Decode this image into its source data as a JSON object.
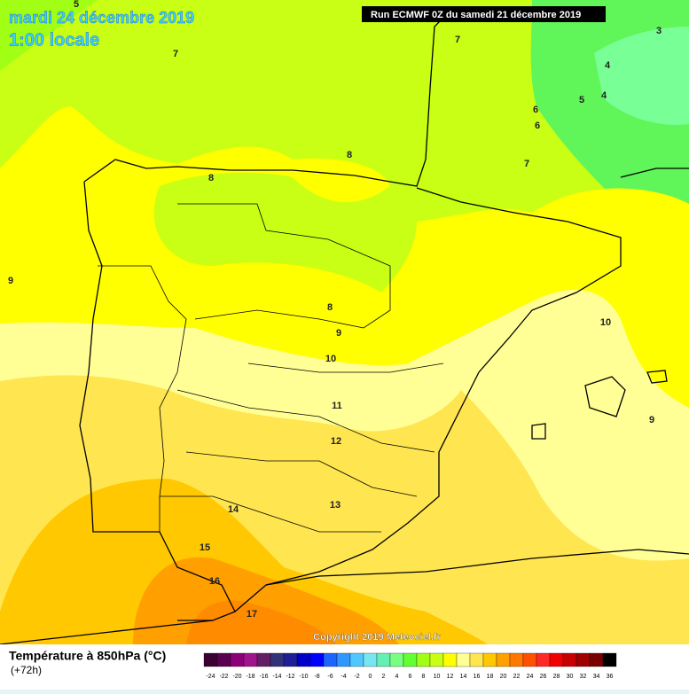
{
  "header": {
    "date": "mardi 24 décembre 2019",
    "time": "1:00 locale",
    "run": "Run ECMWF 0Z du samedi 21 décembre 2019"
  },
  "contour_labels": [
    5,
    7,
    7,
    3,
    4,
    4,
    5,
    6,
    6,
    7,
    8,
    8,
    9,
    8,
    9,
    10,
    10,
    11,
    12,
    9,
    13,
    14,
    15,
    16,
    17
  ],
  "copyright": "Copyright 2019 Meteociel.fr",
  "legend": {
    "title": "Température à 850hPa (°C)",
    "subtitle": "(+72h)",
    "ticks": [
      -24,
      -22,
      -20,
      -18,
      -16,
      -14,
      -12,
      -10,
      -8,
      -6,
      -4,
      -2,
      0,
      2,
      4,
      6,
      8,
      10,
      12,
      14,
      16,
      18,
      20,
      22,
      24,
      26,
      28,
      30,
      32,
      34,
      36
    ],
    "colors": [
      "#3c0032",
      "#5a0050",
      "#8c0078",
      "#a0148c",
      "#641e64",
      "#323278",
      "#1e1e96",
      "#0000c8",
      "#0000ff",
      "#1e64ff",
      "#3296ff",
      "#50c8ff",
      "#78e6f0",
      "#64f0b4",
      "#78ff82",
      "#64ff32",
      "#a0ff14",
      "#c8ff14",
      "#ffff00",
      "#ffff96",
      "#ffe650",
      "#ffc800",
      "#ffa000",
      "#ff7800",
      "#ff5000",
      "#ff2828",
      "#f00000",
      "#c80000",
      "#a00000",
      "#780000",
      "#000000"
    ]
  }
}
